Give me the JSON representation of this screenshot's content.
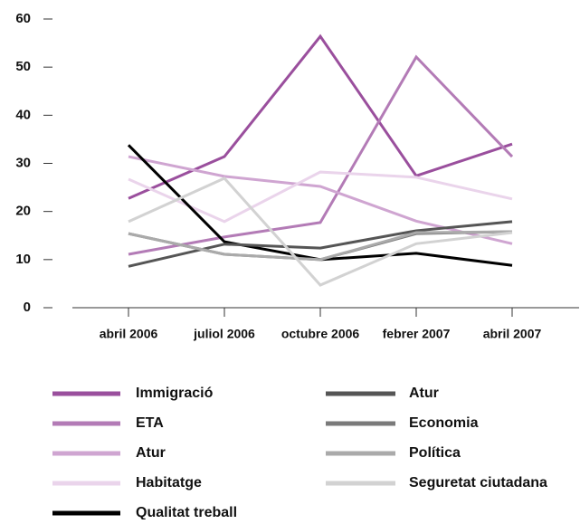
{
  "chart_data": {
    "type": "line",
    "categories": [
      "abril 2006",
      "juliol 2006",
      "octubre 2006",
      "febrer 2007",
      "abril 2007"
    ],
    "ylim": [
      0,
      60
    ],
    "yticks": [
      0,
      10,
      20,
      30,
      40,
      50,
      60
    ],
    "series": [
      {
        "name": "Immigració",
        "color": "#9a4f9d",
        "values": [
          22.7,
          31.4,
          56.4,
          27.4,
          34.0
        ]
      },
      {
        "name": "ETA",
        "color": "#b37bb6",
        "values": [
          11.1,
          14.7,
          17.7,
          52.1,
          31.4
        ]
      },
      {
        "name": "Atur",
        "color": "#cfa5d1",
        "values": [
          31.4,
          27.3,
          25.2,
          18.0,
          13.3
        ]
      },
      {
        "name": "Habitatge",
        "color": "#ead4eb",
        "values": [
          26.7,
          17.9,
          28.2,
          27.1,
          22.6
        ]
      },
      {
        "name": "Qualitat treball",
        "color": "#000000",
        "values": [
          33.8,
          13.7,
          10.0,
          11.3,
          8.8
        ]
      },
      {
        "name": "Atur",
        "color": "#555555",
        "values": [
          8.6,
          13.2,
          12.4,
          16.0,
          17.9
        ]
      },
      {
        "name": "Economia",
        "color": "#7a7a7a",
        "values": [
          15.4,
          11.1,
          10.0,
          15.4,
          15.8
        ]
      },
      {
        "name": "Política",
        "color": "#aaaaaa",
        "values": [
          15.4,
          11.1,
          10.0,
          15.6,
          15.8
        ]
      },
      {
        "name": "Seguretat ciutadana",
        "color": "#d2d2d2",
        "values": [
          17.9,
          26.9,
          4.7,
          13.3,
          15.6
        ]
      }
    ]
  }
}
